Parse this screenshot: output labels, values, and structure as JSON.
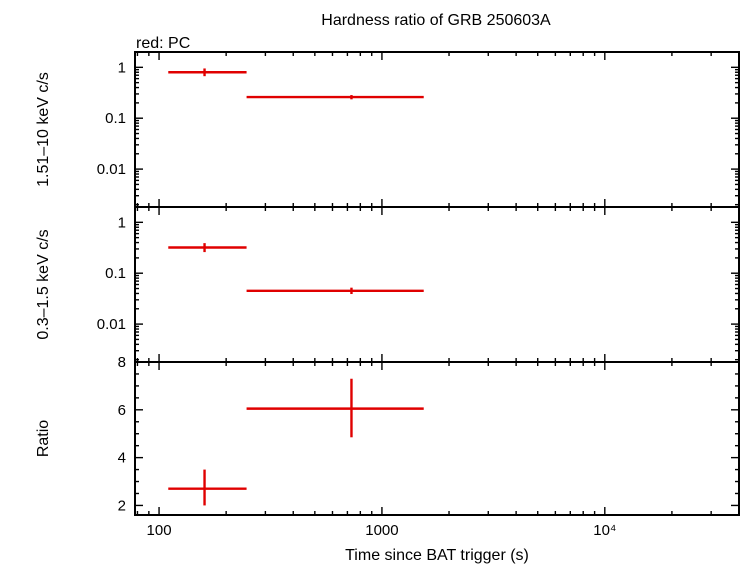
{
  "chart_data": {
    "type": "scatter",
    "title": "Hardness ratio of GRB 250603A",
    "subtitle": "red: PC",
    "xlabel": "Time since BAT trigger (s)",
    "x_scale": "log",
    "xlim": [
      78,
      40000
    ],
    "x_ticks": [
      {
        "value": 100,
        "label": "100"
      },
      {
        "value": 1000,
        "label": "1000"
      },
      {
        "value": 10000,
        "label": "10⁴"
      }
    ],
    "series_color": "#e00000",
    "panels": [
      {
        "ylabel": "1.51–10 keV c/s",
        "y_scale": "log",
        "ylim": [
          0.0018,
          2
        ],
        "y_ticks": [
          {
            "value": 1,
            "label": "1"
          },
          {
            "value": 0.1,
            "label": "0.1"
          },
          {
            "value": 0.01,
            "label": "0.01"
          }
        ],
        "points": [
          {
            "x": 160,
            "x_lo": 110,
            "x_hi": 247,
            "y": 0.8,
            "y_lo": 0.67,
            "y_hi": 0.95
          },
          {
            "x": 730,
            "x_lo": 247,
            "x_hi": 1540,
            "y": 0.26,
            "y_lo": 0.235,
            "y_hi": 0.285
          }
        ]
      },
      {
        "ylabel": "0.3–1.5 keV c/s",
        "y_scale": "log",
        "ylim": [
          0.0018,
          2
        ],
        "y_ticks": [
          {
            "value": 1,
            "label": "1"
          },
          {
            "value": 0.1,
            "label": "0.1"
          },
          {
            "value": 0.01,
            "label": "0.01"
          }
        ],
        "points": [
          {
            "x": 160,
            "x_lo": 110,
            "x_hi": 247,
            "y": 0.32,
            "y_lo": 0.26,
            "y_hi": 0.39
          },
          {
            "x": 730,
            "x_lo": 247,
            "x_hi": 1540,
            "y": 0.045,
            "y_lo": 0.039,
            "y_hi": 0.052
          }
        ]
      },
      {
        "ylabel": "Ratio",
        "y_scale": "linear",
        "ylim": [
          1.6,
          8
        ],
        "y_ticks": [
          {
            "value": 2,
            "label": "2"
          },
          {
            "value": 4,
            "label": "4"
          },
          {
            "value": 6,
            "label": "6"
          },
          {
            "value": 8,
            "label": "8"
          }
        ],
        "points": [
          {
            "x": 160,
            "x_lo": 110,
            "x_hi": 247,
            "y": 2.7,
            "y_lo": 2.0,
            "y_hi": 3.5
          },
          {
            "x": 730,
            "x_lo": 247,
            "x_hi": 1540,
            "y": 6.05,
            "y_lo": 4.85,
            "y_hi": 7.3
          }
        ]
      }
    ]
  }
}
